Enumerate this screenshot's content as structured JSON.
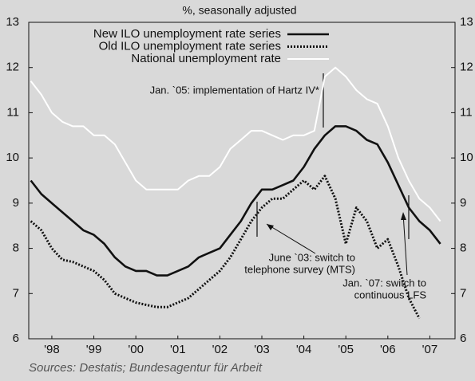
{
  "chart_data": {
    "type": "line",
    "title": "%, seasonally adjusted",
    "source": "Sources: Destatis; Bundesagentur für Arbeit",
    "annotations": [
      [
        "Jan. `05: implementation of Hartz IV*"
      ],
      [
        "June `03: switch to",
        "telephone survey (MTS)"
      ],
      [
        "Jan. `07: switch to",
        "continuous LFS"
      ]
    ],
    "x": [
      1998,
      1998.25,
      1998.5,
      1998.75,
      1999,
      1999.25,
      1999.5,
      1999.75,
      2000,
      2000.25,
      2000.5,
      2000.75,
      2001,
      2001.25,
      2001.5,
      2001.75,
      2002,
      2002.25,
      2002.5,
      2002.75,
      2003,
      2003.25,
      2003.5,
      2003.75,
      2004,
      2004.25,
      2004.5,
      2004.75,
      2005,
      2005.25,
      2005.5,
      2005.75,
      2006,
      2006.25,
      2006.5,
      2006.75,
      2007,
      2007.25,
      2007.5,
      2007.75
    ],
    "series": [
      {
        "name": "New ILO unemployment rate series",
        "color": "#111111",
        "style": "solid",
        "values": [
          9.5,
          9.2,
          9.0,
          8.8,
          8.6,
          8.4,
          8.3,
          8.1,
          7.8,
          7.6,
          7.5,
          7.5,
          7.4,
          7.4,
          7.5,
          7.6,
          7.8,
          7.9,
          8.0,
          8.3,
          8.6,
          9.0,
          9.3,
          9.3,
          9.4,
          9.5,
          9.8,
          10.2,
          10.5,
          10.7,
          10.7,
          10.6,
          10.4,
          10.3,
          9.9,
          9.4,
          8.9,
          8.6,
          8.4,
          8.1
        ]
      },
      {
        "name": "Old ILO unemployment rate series",
        "color": "#111111",
        "style": "dotted",
        "values": [
          8.6,
          8.4,
          8.0,
          7.75,
          7.7,
          7.6,
          7.5,
          7.3,
          7.0,
          6.9,
          6.8,
          6.75,
          6.7,
          6.7,
          6.8,
          6.9,
          7.1,
          7.3,
          7.5,
          7.8,
          8.2,
          8.6,
          8.9,
          9.1,
          9.1,
          9.3,
          9.5,
          9.3,
          9.6,
          9.1,
          8.1,
          8.9,
          8.6,
          8.0,
          8.2,
          7.6,
          6.9,
          6.45,
          null,
          null
        ]
      },
      {
        "name": "National unemployment rate",
        "color": "#ffffff",
        "style": "solid",
        "values": [
          11.7,
          11.4,
          11.0,
          10.8,
          10.7,
          10.7,
          10.5,
          10.5,
          10.3,
          9.9,
          9.5,
          9.3,
          9.3,
          9.3,
          9.3,
          9.5,
          9.6,
          9.6,
          9.8,
          10.2,
          10.4,
          10.6,
          10.6,
          10.5,
          10.4,
          10.5,
          10.5,
          10.6,
          11.8,
          12.0,
          11.8,
          11.5,
          11.3,
          11.2,
          10.7,
          10.0,
          9.5,
          9.1,
          8.9,
          8.6
        ]
      }
    ],
    "xlim": [
      1997.95,
      2008.1
    ],
    "xticks": [
      {
        "value": 1998.5,
        "label": "'98"
      },
      {
        "value": 1999.5,
        "label": "'99"
      },
      {
        "value": 2000.5,
        "label": "'00"
      },
      {
        "value": 2001.5,
        "label": "'01"
      },
      {
        "value": 2002.5,
        "label": "'02"
      },
      {
        "value": 2003.5,
        "label": "'03"
      },
      {
        "value": 2004.5,
        "label": "'04"
      },
      {
        "value": 2005.5,
        "label": "'05"
      },
      {
        "value": 2006.5,
        "label": "'06"
      },
      {
        "value": 2007.5,
        "label": "'07"
      }
    ],
    "ylim": [
      6,
      13
    ],
    "yticks": [
      6,
      7,
      8,
      9,
      10,
      11,
      12,
      13
    ]
  }
}
